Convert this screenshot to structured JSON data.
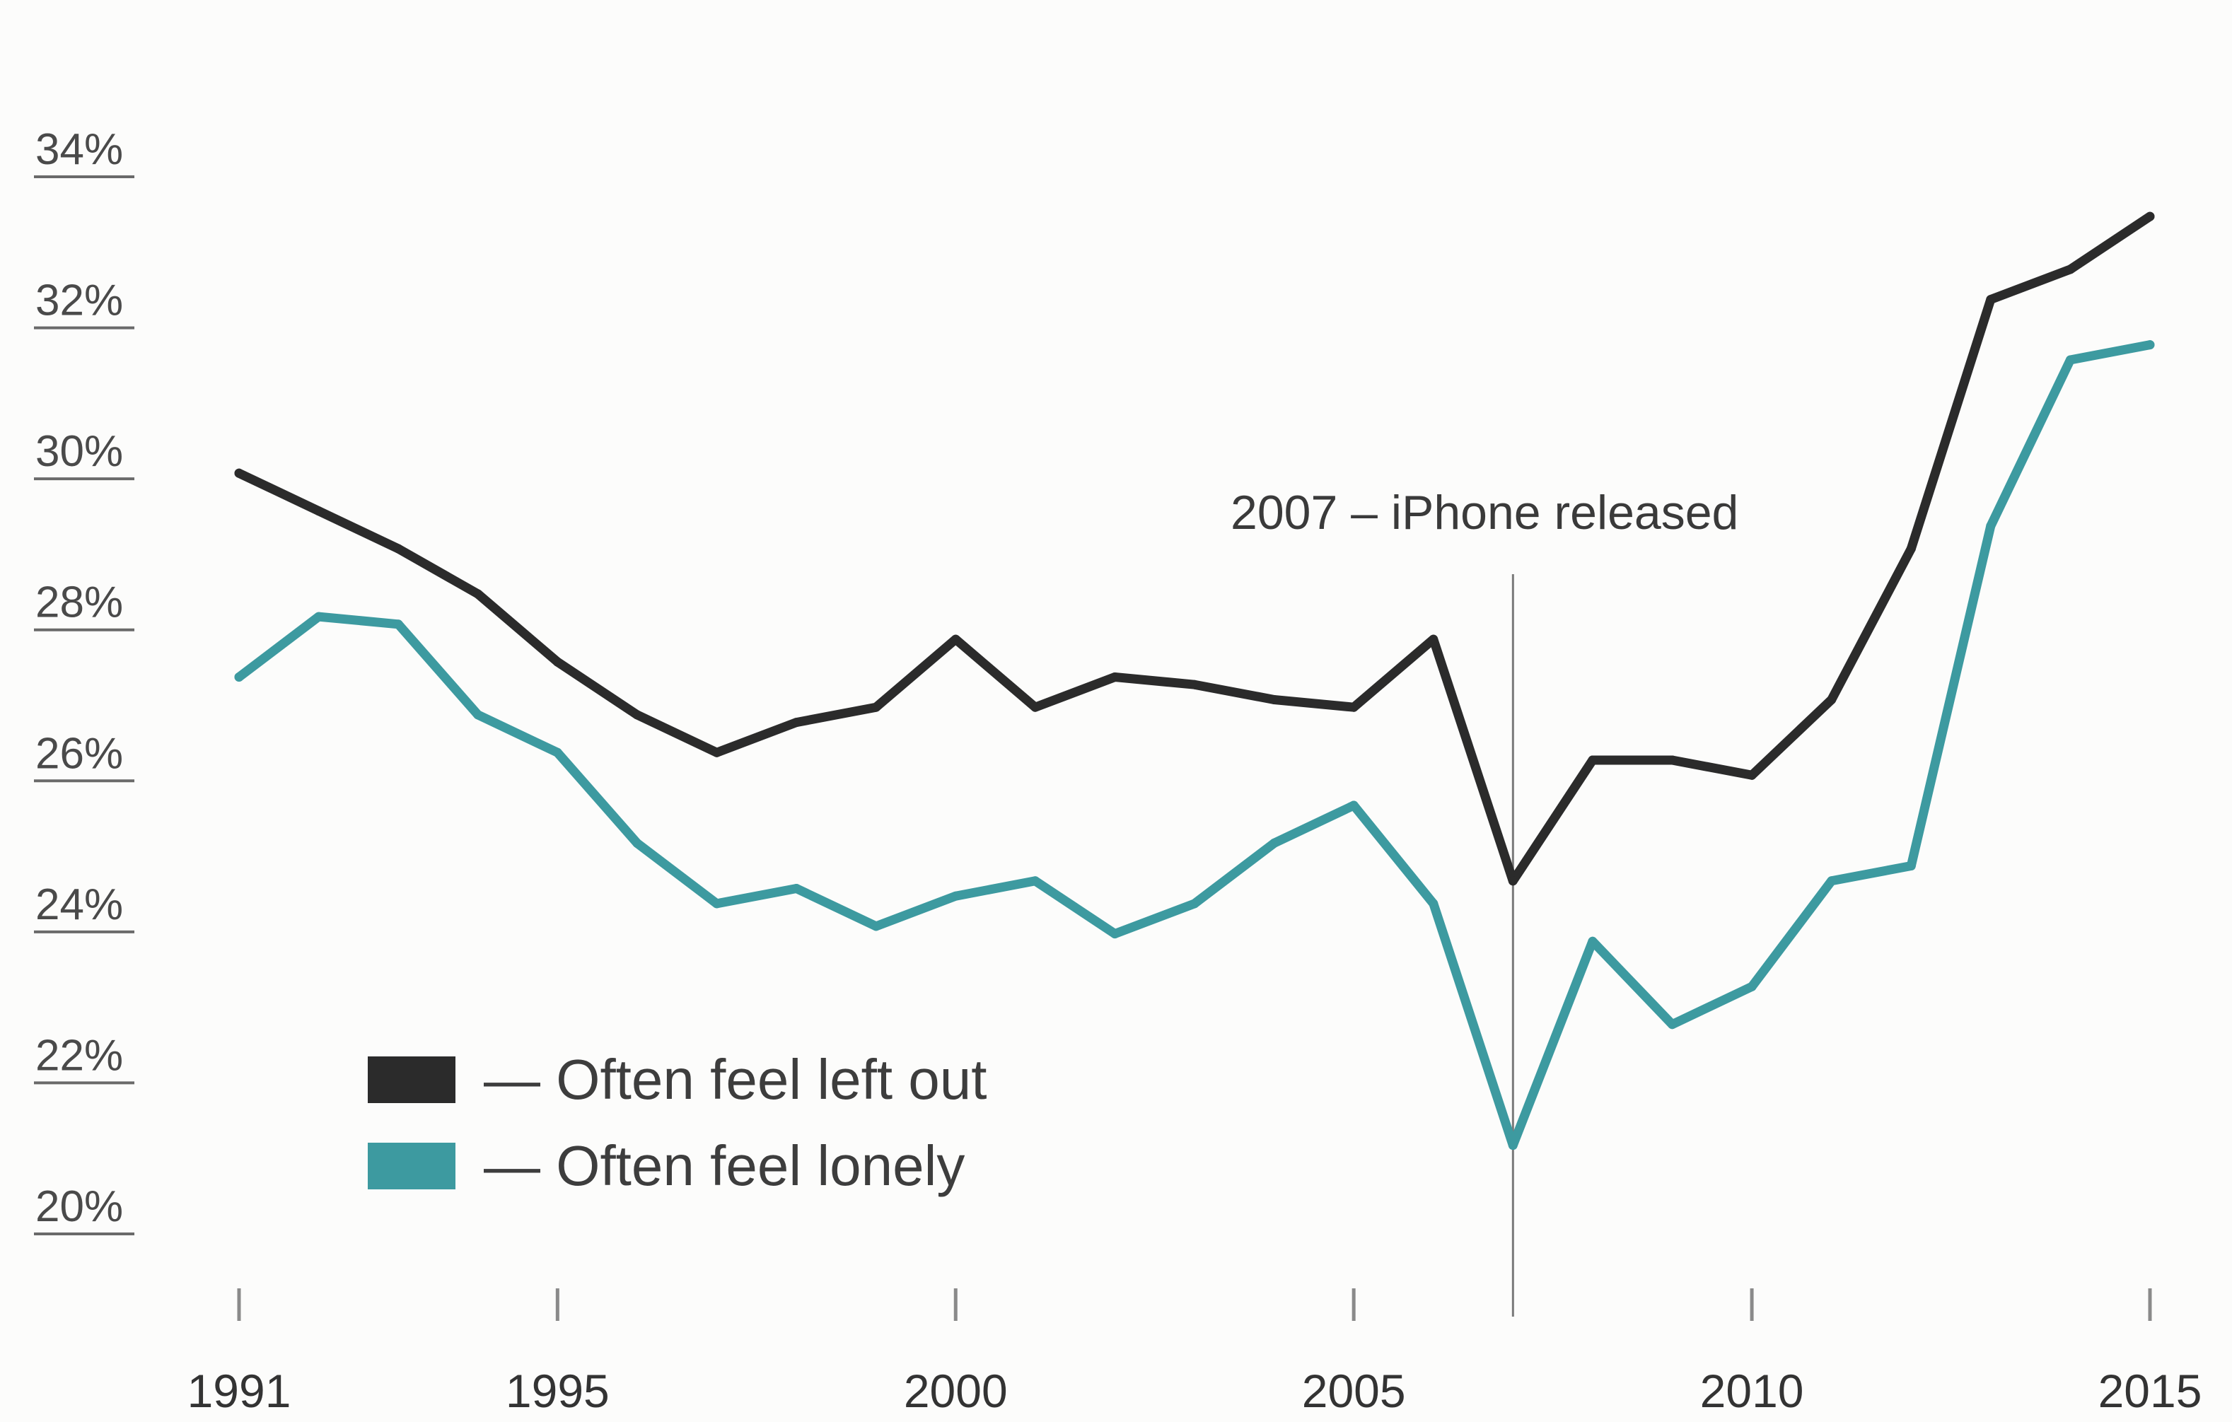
{
  "chart_data": {
    "type": "line",
    "title": "",
    "xlabel": "",
    "ylabel": "",
    "xlim": [
      1991,
      2015
    ],
    "ylim": [
      19,
      35
    ],
    "x_ticks": [
      1991,
      1995,
      2000,
      2005,
      2010,
      2015
    ],
    "x_tick_labels": [
      "1991",
      "1995",
      "2000",
      "2005",
      "2010",
      "2015"
    ],
    "y_ticks": [
      20,
      22,
      24,
      26,
      28,
      30,
      32,
      34
    ],
    "y_tick_labels": [
      "20%",
      "22%",
      "24%",
      "26%",
      "28%",
      "30%",
      "32%",
      "34%"
    ],
    "x": [
      1991,
      1992,
      1993,
      1994,
      1995,
      1996,
      1997,
      1998,
      1999,
      2000,
      2001,
      2002,
      2003,
      2004,
      2005,
      2006,
      2007,
      2008,
      2009,
      2010,
      2011,
      2012,
      2013,
      2014,
      2015
    ],
    "series": [
      {
        "name": "Often feel left out",
        "color": "#2b2b2b",
        "values": [
          29.7,
          29.2,
          28.7,
          28.1,
          27.2,
          26.5,
          26.0,
          26.4,
          26.6,
          27.5,
          26.6,
          27.0,
          26.9,
          26.7,
          26.6,
          27.5,
          24.3,
          25.9,
          25.9,
          25.7,
          26.7,
          28.7,
          32.0,
          32.4,
          33.1
        ]
      },
      {
        "name": "Often feel lonely",
        "color": "#3d9aa0",
        "values": [
          27.0,
          27.8,
          27.7,
          26.5,
          26.0,
          24.8,
          24.0,
          24.2,
          23.7,
          24.1,
          24.3,
          23.6,
          24.0,
          24.8,
          25.3,
          24.0,
          20.8,
          23.5,
          22.4,
          22.9,
          24.3,
          24.5,
          29.0,
          31.2,
          31.4
        ]
      }
    ],
    "annotation": {
      "x": 2007,
      "text": "2007 – iPhone released"
    },
    "legend": {
      "position": "bottom-left",
      "items": [
        {
          "label": "— Often feel left out",
          "color": "#2b2b2b"
        },
        {
          "label": "— Often feel lonely",
          "color": "#3d9aa0"
        }
      ]
    },
    "grid": false
  }
}
